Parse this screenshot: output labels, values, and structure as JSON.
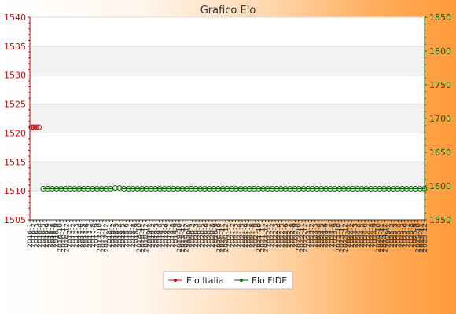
{
  "chart_data": {
    "type": "line",
    "title": "Grafico Elo",
    "xlabel": "",
    "ylabel_left": "",
    "ylabel_right": "",
    "y_left": {
      "min": 1505,
      "max": 1540,
      "ticks": [
        1505,
        1510,
        1515,
        1520,
        1525,
        1530,
        1535,
        1540
      ],
      "color": "#cc0000"
    },
    "y_right": {
      "min": 1550,
      "max": 1850,
      "ticks": [
        1550,
        1600,
        1650,
        1700,
        1750,
        1800,
        1850
      ],
      "color": "#006600"
    },
    "x_tick_labels": [
      "2016-1",
      "2016-2",
      "2016-3",
      "2016-4",
      "2016-5",
      "2016-6",
      "2016-7",
      "2016-8",
      "2016-9",
      "2016-10",
      "2016-11",
      "2016-12",
      "2017-1",
      "2017-2",
      "2017-3",
      "2017-4",
      "2017-5",
      "2017-6",
      "2017-7",
      "2017-8",
      "2017-9",
      "2017-10",
      "2017-11",
      "2017-12",
      "2018-1",
      "2018-2",
      "2018-3",
      "2018-4",
      "2018-5",
      "2018-6",
      "2018-7",
      "2018-8",
      "2018-9",
      "2018-10",
      "2018-11",
      "2018-12",
      "2019-1",
      "2019-2",
      "2019-3",
      "2019-4",
      "2019-5",
      "2019-6",
      "2019-7",
      "2019-8",
      "2019-9",
      "2019-10",
      "2019-11",
      "2019-12",
      "2020-1",
      "2020-2",
      "2020-3",
      "2020-4",
      "2020-5",
      "2020-6",
      "2020-7",
      "2020-8",
      "2020-9",
      "2020-10",
      "2020-11",
      "2020-12",
      "2021-1",
      "2021-2",
      "2021-3",
      "2021-4",
      "2021-5",
      "2021-6",
      "2021-7",
      "2021-8",
      "2021-9",
      "2021-10",
      "2021-11",
      "2021-12",
      "2022-1",
      "2022-2",
      "2022-3",
      "2022-4",
      "2022-5",
      "2022-6",
      "2022-7",
      "2022-8",
      "2022-9",
      "2022-10",
      "2022-11",
      "2022-12",
      "2023-1",
      "2023-2",
      "2023-3",
      "2023-4",
      "2023-5",
      "2023-6",
      "2023-7",
      "2023-8",
      "2023-9",
      "2023-10",
      "2023-11",
      "2023-12",
      "2024-1",
      "2024-2",
      "2024-3",
      "2024-4",
      "2024-5",
      "2024-6",
      "2024-7",
      "2024-8",
      "2024-9",
      "2024-10",
      "2024-11",
      "2024-12",
      "2025-1",
      "2025-2",
      "2025-3",
      "2025-4",
      "2025-5",
      "2025-6",
      "2025-7",
      "2025-8",
      "2025-9",
      "2025-10",
      "2025-11",
      "2025-12"
    ],
    "series": [
      {
        "name": "Elo Italia",
        "axis": "left",
        "color": "#cc0000",
        "values": [
          1521,
          1521,
          1521,
          1521
        ]
      },
      {
        "name": "Elo FIDE",
        "axis": "right",
        "color": "#006600",
        "values": [
          1596,
          1596,
          1596,
          1596,
          1596,
          1596,
          1596,
          1596,
          1596,
          1596,
          1596,
          1596,
          1596,
          1596,
          1596,
          1596,
          1597,
          1597,
          1596,
          1596,
          1596,
          1596,
          1596,
          1596,
          1596,
          1596,
          1596,
          1596,
          1596,
          1596,
          1596,
          1596,
          1596,
          1596,
          1596,
          1596,
          1596,
          1596,
          1596,
          1596,
          1596,
          1596,
          1596,
          1596,
          1596,
          1596,
          1596,
          1596,
          1596,
          1596,
          1596,
          1596,
          1596,
          1596,
          1596,
          1596,
          1596,
          1596,
          1596,
          1596,
          1596,
          1596,
          1596,
          1596,
          1596,
          1596,
          1596,
          1596,
          1596,
          1596,
          1596,
          1596,
          1596,
          1596,
          1596,
          1596,
          1596,
          1596,
          1596,
          1596,
          1596,
          1596,
          1596,
          1596,
          1596,
          1596
        ]
      }
    ],
    "legend_position": "bottom-center",
    "grid": true
  }
}
